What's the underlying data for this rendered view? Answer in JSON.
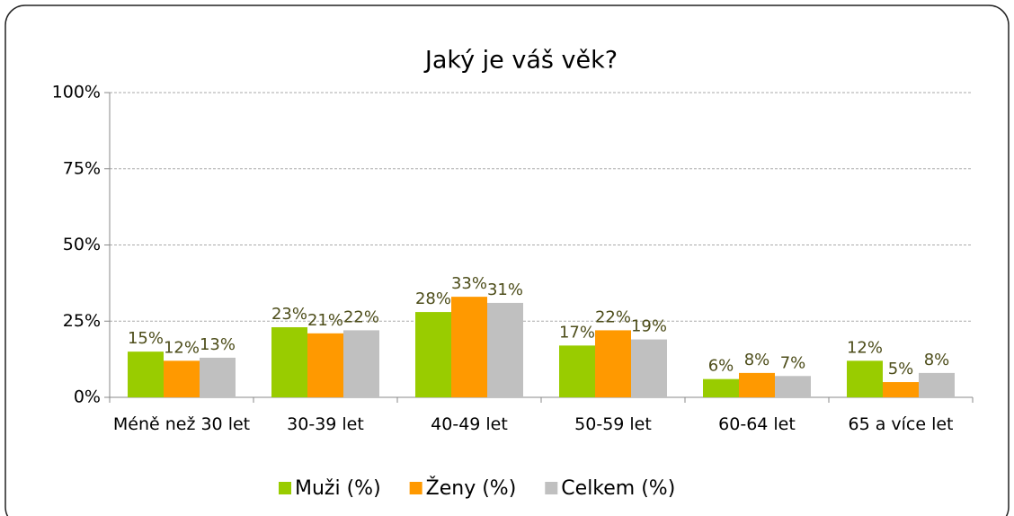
{
  "chart_data": {
    "type": "bar",
    "title": "Jaký je váš věk?",
    "categories": [
      "Méně než 30 let",
      "30-39 let",
      "40-49 let",
      "50-59 let",
      "60-64 let",
      "65 a více let"
    ],
    "series": [
      {
        "name": "Muži (%)",
        "color": "#99cc00",
        "values": [
          15,
          23,
          28,
          17,
          6,
          12
        ],
        "value_labels": [
          "15%",
          "23%",
          "28%",
          "17%",
          "6%",
          "12%"
        ]
      },
      {
        "name": "Ženy (%)",
        "color": "#ff9900",
        "values": [
          12,
          21,
          33,
          22,
          8,
          5
        ],
        "value_labels": [
          "12%",
          "21%",
          "33%",
          "22%",
          "8%",
          "5%"
        ]
      },
      {
        "name": "Celkem (%)",
        "color": "#c0c0c0",
        "values": [
          13,
          22,
          31,
          19,
          7,
          8
        ],
        "value_labels": [
          "13%",
          "22%",
          "31%",
          "19%",
          "7%",
          "8%"
        ]
      }
    ],
    "ylim": [
      0,
      100
    ],
    "yticks": [
      {
        "value": 0,
        "label": "0%"
      },
      {
        "value": 25,
        "label": "25%"
      },
      {
        "value": 50,
        "label": "50%"
      },
      {
        "value": 75,
        "label": "75%"
      },
      {
        "value": 100,
        "label": "100%"
      }
    ],
    "grid": true,
    "legend": "bottom"
  }
}
